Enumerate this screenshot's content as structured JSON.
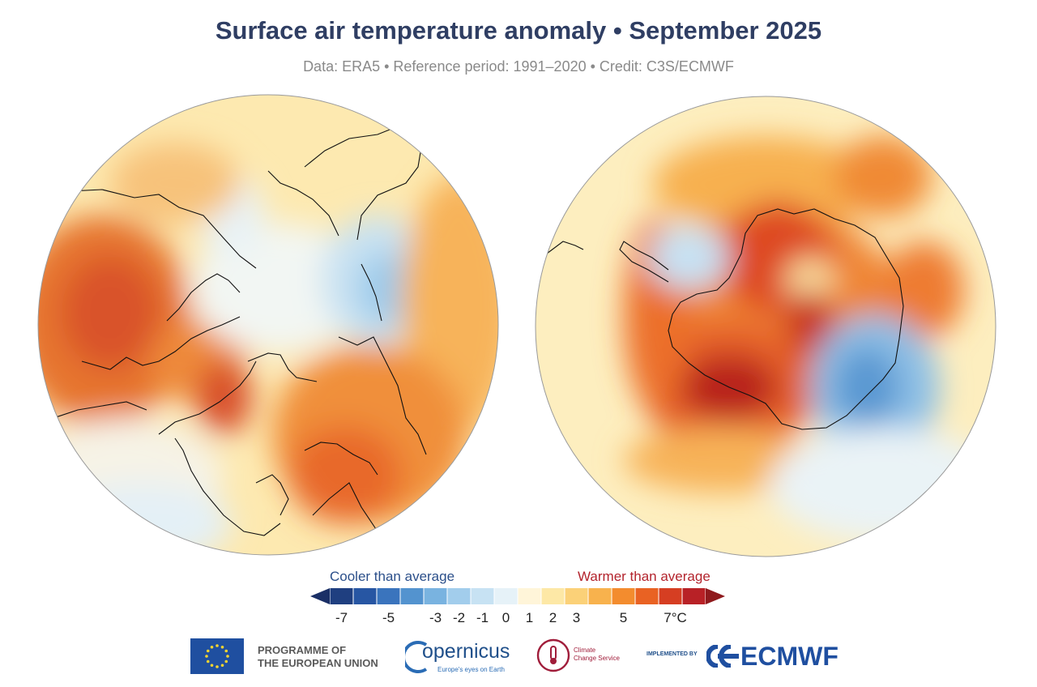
{
  "header": {
    "title": "Surface air temperature anomaly • September 2025",
    "subtitle": "Data: ERA5 • Reference period: 1991–2020 • Credit: C3S/ECMWF"
  },
  "maps": [
    {
      "name": "north-polar-map",
      "region": "Arctic"
    },
    {
      "name": "south-polar-map",
      "region": "Antarctic"
    }
  ],
  "legend": {
    "cooler_label": "Cooler than average",
    "warmer_label": "Warmer than average",
    "ticks": [
      "-7",
      "-5",
      "-3",
      "-2",
      "-1",
      "0",
      "1",
      "2",
      "3",
      "5",
      "7°C"
    ],
    "colors": [
      "#1f3f80",
      "#2756a3",
      "#3a74bd",
      "#5393cf",
      "#79b3e0",
      "#a2cdec",
      "#c7e2f3",
      "#e6f2f8",
      "#fff5d9",
      "#fde8a6",
      "#fbd178",
      "#f8b24d",
      "#f38c2e",
      "#e96223",
      "#d63e22",
      "#b82126"
    ],
    "arrow_cold": "#1a2f66",
    "arrow_warm": "#8f1a1d"
  },
  "footer": {
    "eu_label_line1": "PROGRAMME OF",
    "eu_label_line2": "THE EUROPEAN UNION",
    "copernicus_name": "opernicus",
    "copernicus_tagline": "Europe's eyes on Earth",
    "c3s_line1": "Climate",
    "c3s_line2": "Change Service",
    "implemented_by": "IMPLEMENTED BY",
    "ecmwf": "ECMWF"
  }
}
